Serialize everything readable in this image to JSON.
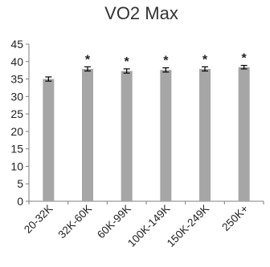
{
  "chart_data": {
    "type": "bar",
    "title": "VO2 Max",
    "xlabel": "",
    "ylabel": "",
    "categories": [
      "20-32K",
      "32K-60K",
      "60K-99K",
      "100K-149K",
      "150K-249K",
      "250K+"
    ],
    "values": [
      35.0,
      37.9,
      37.3,
      37.6,
      37.9,
      38.4
    ],
    "errors": [
      0.6,
      0.6,
      0.6,
      0.6,
      0.6,
      0.5
    ],
    "significance": [
      "",
      "*",
      "*",
      "*",
      "*",
      "*"
    ],
    "ylim": [
      0,
      45
    ],
    "yticks": [
      0,
      5,
      10,
      15,
      20,
      25,
      30,
      35,
      40,
      45
    ],
    "grid": false,
    "legend": "none",
    "colors": {
      "bar": "#a6a6a6",
      "axis": "#7f7f7f",
      "errorbar": "#000000"
    }
  }
}
